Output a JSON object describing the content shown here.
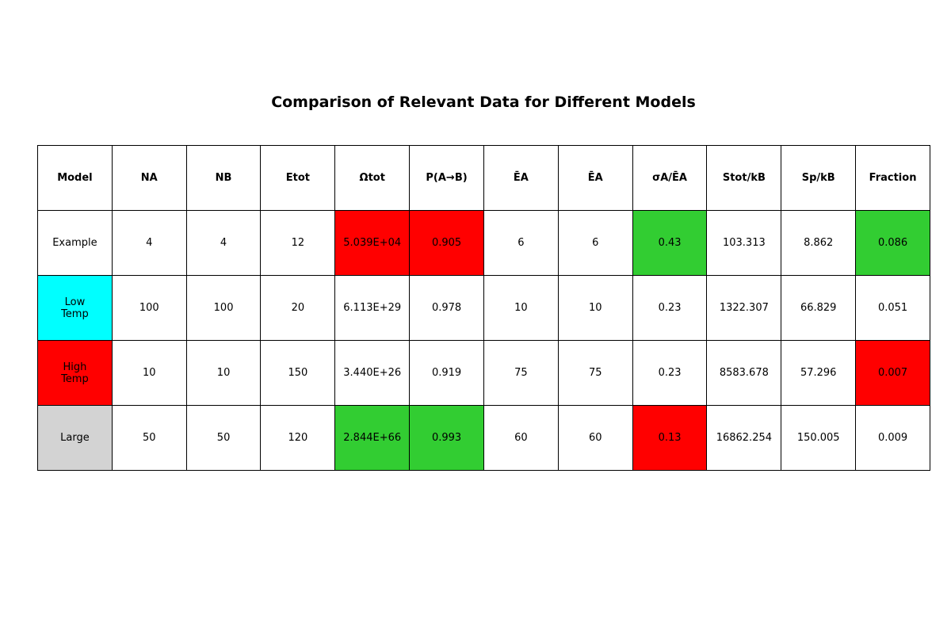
{
  "chart_data": {
    "type": "table",
    "title": "Comparison of Relevant Data for Different Models",
    "columns": [
      "Model",
      "NA",
      "NB",
      "Etot",
      "Ωtot",
      "P(A→B)",
      "ĒA",
      "ĒA",
      "σA/ĒA",
      "Stot/kB",
      "Sp/kB",
      "Fraction"
    ],
    "rows": [
      {
        "cells": [
          "Example",
          "4",
          "4",
          "12",
          "5.039E+04",
          "0.905",
          "6",
          "6",
          "0.43",
          "103.313",
          "8.862",
          "0.086"
        ],
        "colors": [
          "#ffffff",
          "#ffffff",
          "#ffffff",
          "#ffffff",
          "#ff0000",
          "#ff0000",
          "#ffffff",
          "#ffffff",
          "#32cd32",
          "#ffffff",
          "#ffffff",
          "#32cd32"
        ]
      },
      {
        "cells": [
          "Low\nTemp",
          "100",
          "100",
          "20",
          "6.113E+29",
          "0.978",
          "10",
          "10",
          "0.23",
          "1322.307",
          "66.829",
          "0.051"
        ],
        "colors": [
          "#00ffff",
          "#ffffff",
          "#ffffff",
          "#ffffff",
          "#ffffff",
          "#ffffff",
          "#ffffff",
          "#ffffff",
          "#ffffff",
          "#ffffff",
          "#ffffff",
          "#ffffff"
        ]
      },
      {
        "cells": [
          "High\nTemp",
          "10",
          "10",
          "150",
          "3.440E+26",
          "0.919",
          "75",
          "75",
          "0.23",
          "8583.678",
          "57.296",
          "0.007"
        ],
        "colors": [
          "#ff0000",
          "#ffffff",
          "#ffffff",
          "#ffffff",
          "#ffffff",
          "#ffffff",
          "#ffffff",
          "#ffffff",
          "#ffffff",
          "#ffffff",
          "#ffffff",
          "#ff0000"
        ]
      },
      {
        "cells": [
          "Large",
          "50",
          "50",
          "120",
          "2.844E+66",
          "0.993",
          "60",
          "60",
          "0.13",
          "16862.254",
          "150.005",
          "0.009"
        ],
        "colors": [
          "#d3d3d3",
          "#ffffff",
          "#ffffff",
          "#ffffff",
          "#32cd32",
          "#32cd32",
          "#ffffff",
          "#ffffff",
          "#ff0000",
          "#ffffff",
          "#ffffff",
          "#ffffff"
        ]
      }
    ]
  }
}
